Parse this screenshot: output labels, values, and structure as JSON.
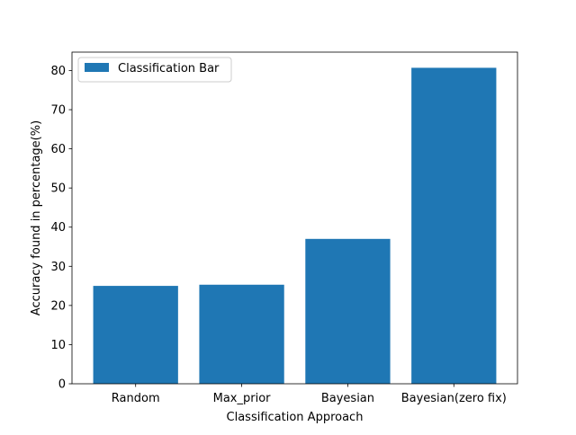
{
  "chart_data": {
    "type": "bar",
    "title": "",
    "xlabel": "Classification Approach",
    "ylabel": "Accuracy found in percentage(%)",
    "categories": [
      "Random",
      "Max_prior",
      "Bayesian",
      "Bayesian(zero fix)"
    ],
    "series": [
      {
        "name": "Classification Bar",
        "values": [
          25.0,
          25.3,
          37.0,
          80.7
        ],
        "color": "#1f77b4"
      }
    ],
    "ylim": [
      0,
      84.7
    ],
    "yticks": [
      0,
      10,
      20,
      30,
      40,
      50,
      60,
      70,
      80
    ],
    "grid": false,
    "legend_position": "upper-left"
  }
}
